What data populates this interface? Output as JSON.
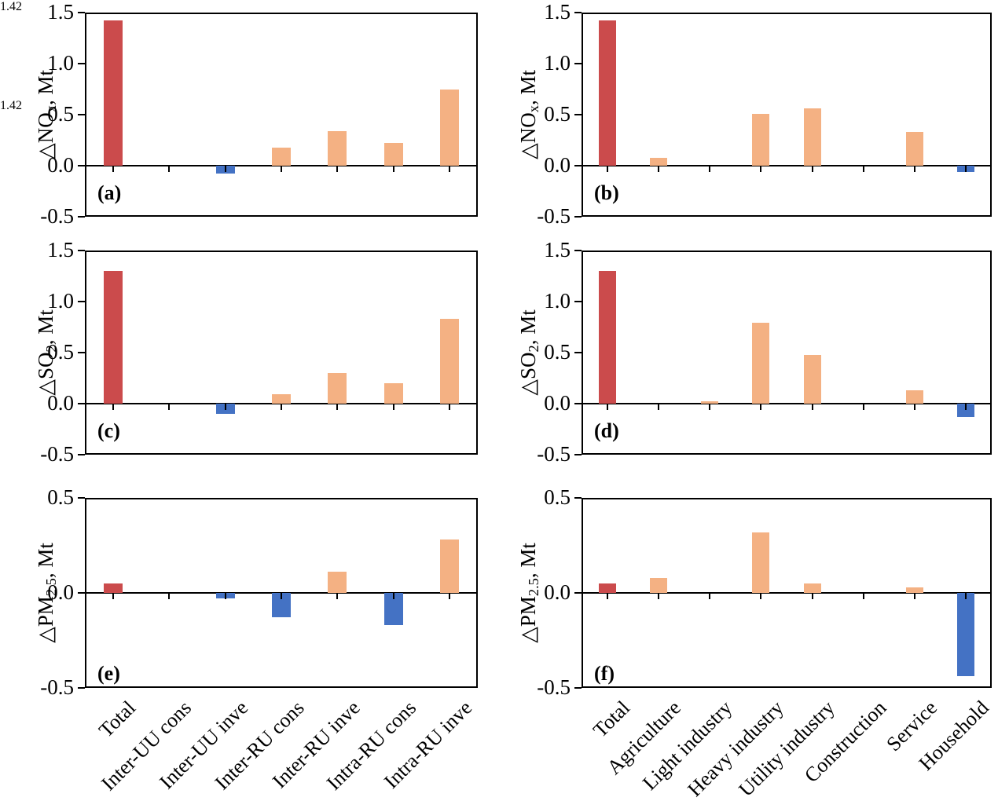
{
  "figure": {
    "colors": {
      "total_bar": "#CB4B4C",
      "positive_bar": "#F4B183",
      "negative_bar": "#4472C4",
      "axis": "#000000",
      "background": "#FFFFFF"
    }
  },
  "chart_data": {
    "type": "bar",
    "title": "",
    "grid": false,
    "legend": "none",
    "left_categories": [
      "Total",
      "Inter-UU cons",
      "Inter-UU inve",
      "Inter-RU cons",
      "Inter-RU inve",
      "Intra-RU cons",
      "Intra-RU inve"
    ],
    "right_categories": [
      "Total",
      "Agriculture",
      "Light industry",
      "Heavy industry",
      "Utility industry",
      "Construction",
      "Service",
      "Household"
    ],
    "panels": [
      {
        "letter": "(a)",
        "col": 0,
        "row": 0,
        "ylabel_prefix": "△NO",
        "ylabel_sub": "x",
        "ylabel_suffix": ", Mt",
        "ylim": [
          -0.5,
          1.5
        ],
        "yticks": [
          "1.5",
          "1.0",
          "0.5",
          "0.0",
          "-0.5"
        ],
        "categories": [
          "Total",
          "Inter-UU cons",
          "Inter-UU inve",
          "Inter-RU cons",
          "Inter-RU inve",
          "Intra-RU cons",
          "Intra-RU inve"
        ],
        "values": [
          1.42,
          0.01,
          -0.08,
          0.18,
          0.34,
          0.22,
          0.75
        ],
        "labels": [
          "1.42",
          "0.01",
          "-0.08",
          "0.18",
          "0.34",
          "0.22",
          "0.75"
        ],
        "label_pos": [
          "right",
          "above",
          "below",
          "above",
          "above",
          "above",
          "above"
        ]
      },
      {
        "letter": "(b)",
        "col": 1,
        "row": 0,
        "ylabel_prefix": "△NO",
        "ylabel_sub": "x",
        "ylabel_suffix": ", Mt",
        "ylim": [
          -0.5,
          1.5
        ],
        "yticks": [
          "1.5",
          "1.0",
          "0.5",
          "0.0",
          "-0.5"
        ],
        "categories": [
          "Total",
          "Agriculture",
          "Light industry",
          "Heavy industry",
          "Utility industry",
          "Construction",
          "Service",
          "Household"
        ],
        "values": [
          1.42,
          0.08,
          0.01,
          0.51,
          0.56,
          0.01,
          0.33,
          -0.06
        ],
        "labels": [
          "1.42",
          "0.08",
          "0.01",
          "0.51",
          "0.56",
          "0.01",
          "0.33",
          "-0.06"
        ],
        "label_pos": [
          "right",
          "above",
          "above",
          "above",
          "above",
          "above",
          "above",
          "below"
        ]
      },
      {
        "letter": "(c)",
        "col": 0,
        "row": 1,
        "ylabel_prefix": "△SO",
        "ylabel_sub": "2",
        "ylabel_suffix": ", Mt",
        "ylim": [
          -0.5,
          1.5
        ],
        "yticks": [
          "1.5",
          "1.0",
          "0.5",
          "0.0",
          "-0.5"
        ],
        "categories": [
          "Total",
          "Inter-UU cons",
          "Inter-UU inve",
          "Inter-RU cons",
          "Inter-RU inve",
          "Intra-RU cons",
          "Intra-RU inve"
        ],
        "values": [
          1.3,
          -0.01,
          -0.1,
          0.09,
          0.3,
          0.2,
          0.83
        ],
        "labels": [
          "1.30",
          "-0.01",
          "-0.10",
          "0.09",
          "0.30",
          "0.20",
          "0.83"
        ],
        "label_pos": [
          "above",
          "below",
          "below",
          "above",
          "above",
          "above",
          "above"
        ]
      },
      {
        "letter": "(d)",
        "col": 1,
        "row": 1,
        "ylabel_prefix": "△SO",
        "ylabel_sub": "2",
        "ylabel_suffix": ", Mt",
        "ylim": [
          -0.5,
          1.5
        ],
        "yticks": [
          "1.5",
          "1.0",
          "0.5",
          "0.0",
          "-0.5"
        ],
        "categories": [
          "Total",
          "Agriculture",
          "Light industry",
          "Heavy industry",
          "Utility industry",
          "Construction",
          "Service",
          "Household"
        ],
        "values": [
          1.3,
          0.01,
          0.02,
          0.79,
          0.48,
          0.0,
          0.13,
          -0.13
        ],
        "labels": [
          "1.30",
          "0.01",
          "0.02",
          "0.79",
          "0.48",
          "0.00",
          "0.13",
          "-0.13"
        ],
        "label_pos": [
          "above",
          "above",
          "above",
          "above",
          "above",
          "above",
          "above",
          "below"
        ]
      },
      {
        "letter": "(e)",
        "col": 0,
        "row": 2,
        "ylabel_prefix": "△PM",
        "ylabel_sub": "2.5",
        "ylabel_suffix": ", Mt",
        "ylim": [
          -0.5,
          0.5
        ],
        "yticks": [
          "0.5",
          "0.0",
          "-0.5"
        ],
        "categories": [
          "Total",
          "Inter-UU cons",
          "Inter-UU inve",
          "Inter-RU cons",
          "Inter-RU inve",
          "Intra-RU cons",
          "Intra-RU inve"
        ],
        "values": [
          0.05,
          0.0,
          -0.03,
          -0.13,
          0.11,
          -0.17,
          0.28
        ],
        "labels": [
          "0.05",
          "0.00",
          "-0.03",
          "-0.13",
          "0.11",
          "-0.17",
          "0.28"
        ],
        "label_pos": [
          "above",
          "below",
          "below",
          "below",
          "above",
          "below",
          "above"
        ]
      },
      {
        "letter": "(f)",
        "col": 1,
        "row": 2,
        "ylabel_prefix": "△PM",
        "ylabel_sub": "2.5",
        "ylabel_suffix": ", Mt",
        "ylim": [
          -0.5,
          0.5
        ],
        "yticks": [
          "0.5",
          "0.0",
          "-0.5"
        ],
        "categories": [
          "Total",
          "Agriculture",
          "Light industry",
          "Heavy industry",
          "Utility industry",
          "Construction",
          "Service",
          "Household"
        ],
        "values": [
          0.05,
          0.08,
          0.0,
          0.32,
          0.05,
          0.0,
          0.03,
          -0.44
        ],
        "labels": [
          "0.05",
          "0.08",
          "0.00",
          "0.32",
          "0.05",
          "0.00",
          "0.03",
          "-0.44"
        ],
        "label_pos": [
          "above",
          "above",
          "above",
          "above",
          "above",
          "above",
          "above",
          "left"
        ]
      }
    ]
  }
}
